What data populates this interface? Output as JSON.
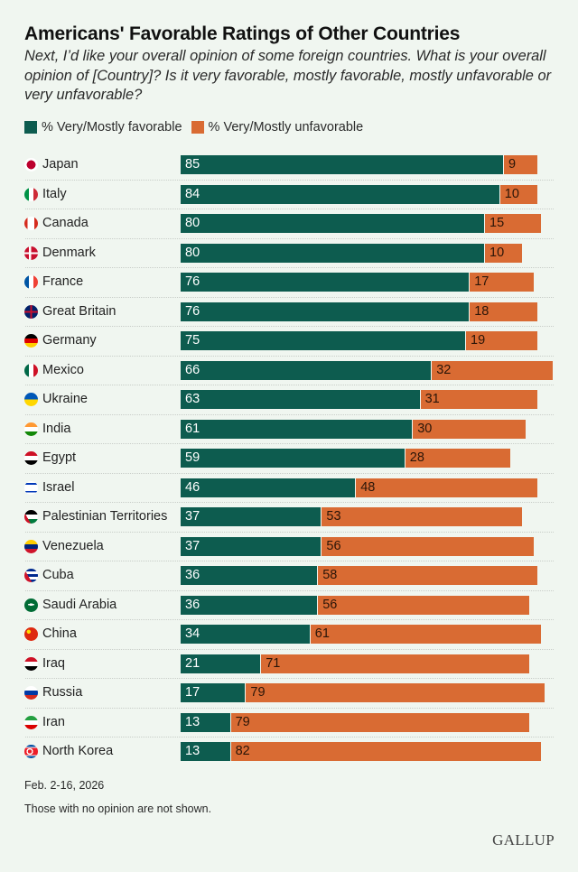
{
  "chart_data": {
    "type": "bar",
    "orientation": "horizontal",
    "stacked": true,
    "title": "Americans' Favorable Ratings of Other Countries",
    "subtitle": "Next, I’d like your overall opinion of some foreign countries. What is your overall opinion of [Country]? Is it very favorable, mostly favorable, mostly unfavorable or very unfavorable?",
    "xlabel": "",
    "ylabel": "",
    "xlim": [
      0,
      100
    ],
    "grid": false,
    "legend_position": "top-left",
    "categories": [
      "Japan",
      "Italy",
      "Canada",
      "Denmark",
      "France",
      "Great Britain",
      "Germany",
      "Mexico",
      "Ukraine",
      "India",
      "Egypt",
      "Israel",
      "Palestinian Territories",
      "Venezuela",
      "Cuba",
      "Saudi Arabia",
      "China",
      "Iraq",
      "Russia",
      "Iran",
      "North Korea"
    ],
    "series": [
      {
        "name": "% Very/Mostly favorable",
        "color": "#0d5c4f",
        "values": [
          85,
          84,
          80,
          80,
          76,
          76,
          75,
          66,
          63,
          61,
          59,
          46,
          37,
          37,
          36,
          36,
          34,
          21,
          17,
          13,
          13
        ]
      },
      {
        "name": "% Very/Mostly unfavorable",
        "color": "#d96b33",
        "values": [
          9,
          10,
          15,
          10,
          17,
          18,
          19,
          32,
          31,
          30,
          28,
          48,
          53,
          56,
          58,
          56,
          61,
          71,
          79,
          79,
          82
        ]
      }
    ]
  },
  "flags": [
    "japan-flag",
    "italy-flag",
    "canada-flag",
    "denmark-flag",
    "france-flag",
    "great-britain-flag",
    "germany-flag",
    "mexico-flag",
    "ukraine-flag",
    "india-flag",
    "egypt-flag",
    "israel-flag",
    "palestinian-territories-flag",
    "venezuela-flag",
    "cuba-flag",
    "saudi-arabia-flag",
    "china-flag",
    "iraq-flag",
    "russia-flag",
    "iran-flag",
    "north-korea-flag"
  ],
  "footer": {
    "date": "Feb. 2-16, 2026",
    "note": "Those with no opinion are not shown.",
    "logo": "GALLUP"
  }
}
